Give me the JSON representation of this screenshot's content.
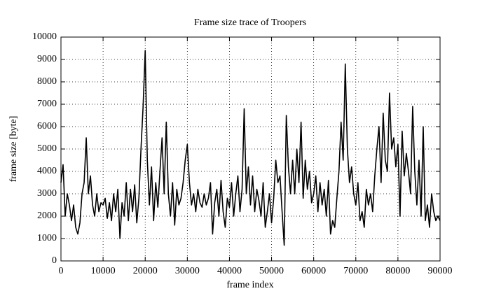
{
  "chart_data": {
    "type": "line",
    "title": "Frame size trace of Troopers",
    "x_label": "frame index",
    "y_label": "frame size [byte]",
    "x": [
      0,
      500,
      1000,
      1500,
      2000,
      2500,
      3000,
      3500,
      4000,
      4500,
      5000,
      5500,
      6000,
      6500,
      7000,
      7500,
      8000,
      8500,
      9000,
      9500,
      10000,
      10500,
      11000,
      11500,
      12000,
      12500,
      13000,
      13500,
      14000,
      14500,
      15000,
      15500,
      16000,
      16500,
      17000,
      17500,
      18000,
      18500,
      19000,
      19500,
      20000,
      20500,
      21000,
      21500,
      22000,
      22500,
      23000,
      23500,
      24000,
      24500,
      25000,
      25500,
      26000,
      26500,
      27000,
      27500,
      28000,
      28500,
      29000,
      29500,
      30000,
      30500,
      31000,
      31500,
      32000,
      32500,
      33000,
      33500,
      34000,
      34500,
      35000,
      35500,
      36000,
      36500,
      37000,
      37500,
      38000,
      38500,
      39000,
      39500,
      40000,
      40500,
      41000,
      41500,
      42000,
      42500,
      43000,
      43500,
      44000,
      44500,
      45000,
      45500,
      46000,
      46500,
      47000,
      47500,
      48000,
      48500,
      49000,
      49500,
      50000,
      50500,
      51000,
      51500,
      52000,
      52500,
      53000,
      53500,
      54000,
      54500,
      55000,
      55500,
      56000,
      56500,
      57000,
      57500,
      58000,
      58500,
      59000,
      59500,
      60000,
      60500,
      61000,
      61500,
      62000,
      62500,
      63000,
      63500,
      64000,
      64500,
      65000,
      65500,
      66000,
      66500,
      67000,
      67500,
      68000,
      68500,
      69000,
      69500,
      70000,
      70500,
      71000,
      71500,
      72000,
      72500,
      73000,
      73500,
      74000,
      74500,
      75000,
      75500,
      76000,
      76500,
      77000,
      77500,
      78000,
      78500,
      79000,
      79500,
      80000,
      80500,
      81000,
      81500,
      82000,
      82500,
      83000,
      83500,
      84000,
      84500,
      85000,
      85500,
      86000,
      86500,
      87000,
      87500,
      88000,
      88500,
      89000,
      89500,
      90000
    ],
    "series": [
      {
        "color": "#000000",
        "values": [
          3500,
          4300,
          2000,
          3000,
          2500,
          1800,
          2500,
          1500,
          1200,
          1700,
          3000,
          3500,
          5500,
          3000,
          3800,
          2500,
          2000,
          3000,
          2200,
          2600,
          2500,
          2800,
          1900,
          2600,
          1800,
          3000,
          2200,
          3200,
          1000,
          2600,
          2000,
          3500,
          1800,
          3200,
          2200,
          3400,
          1700,
          2800,
          5000,
          6900,
          9400,
          4500,
          2500,
          4200,
          1800,
          3500,
          2400,
          4000,
          5500,
          3000,
          6200,
          3000,
          2000,
          3500,
          1600,
          3200,
          2500,
          2800,
          3500,
          4500,
          5200,
          3500,
          2500,
          3000,
          2200,
          3200,
          2600,
          2400,
          3000,
          2500,
          2800,
          3500,
          1200,
          2600,
          3200,
          2000,
          3600,
          2200,
          1500,
          2800,
          2400,
          3500,
          2000,
          3000,
          3800,
          2200,
          3200,
          6800,
          3000,
          4200,
          2500,
          3800,
          2200,
          3200,
          2700,
          2000,
          3500,
          1500,
          2200,
          3000,
          1700,
          2800,
          4500,
          3500,
          3800,
          2200,
          700,
          6500,
          4200,
          3000,
          4500,
          3000,
          5000,
          3500,
          6200,
          2800,
          4500,
          3200,
          4000,
          2600,
          3000,
          3800,
          2200,
          3500,
          2500,
          3200,
          2000,
          3600,
          1200,
          1800,
          1500,
          2800,
          4000,
          6200,
          4500,
          8800,
          5000,
          3500,
          4200,
          3000,
          2500,
          3500,
          1800,
          2200,
          1500,
          3200,
          2500,
          3000,
          2200,
          3800,
          5000,
          6000,
          3500,
          6600,
          4500,
          4000,
          7500,
          5000,
          5500,
          4200,
          5200,
          2000,
          5800,
          3800,
          4800,
          4000,
          3000,
          6900,
          4000,
          2500,
          4500,
          2000,
          6000,
          1800,
          2500,
          1500,
          3000,
          2200,
          1800,
          2000,
          1800
        ]
      }
    ],
    "xlim": [
      0,
      90000
    ],
    "ylim": [
      0,
      10000
    ],
    "xticks": [
      0,
      10000,
      20000,
      30000,
      40000,
      50000,
      60000,
      70000,
      80000,
      90000
    ],
    "yticks": [
      0,
      1000,
      2000,
      3000,
      4000,
      5000,
      6000,
      7000,
      8000,
      9000,
      10000
    ],
    "grid": true
  }
}
